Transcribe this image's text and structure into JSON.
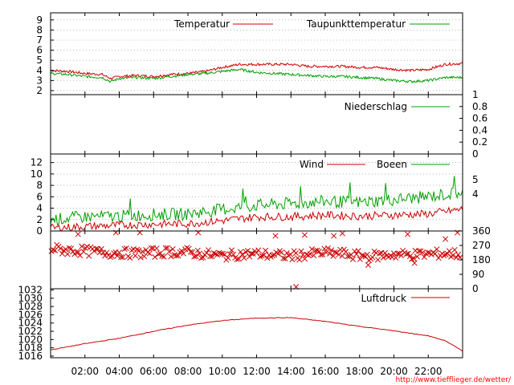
{
  "footer_url": "http://www.tiefflieger.de/wetter/",
  "x_ticks": [
    "02:00",
    "04:00",
    "06:00",
    "08:00",
    "10:00",
    "12:00",
    "14:00",
    "16:00",
    "18:00",
    "20:00",
    "22:00"
  ],
  "colors": {
    "red": "#cc0000",
    "green": "#00a000",
    "frame": "#000000"
  },
  "chart_data": [
    {
      "type": "line",
      "y_ticks": [
        2,
        3,
        4,
        5,
        6,
        7,
        8,
        9
      ],
      "ylim": [
        1.6,
        9.7
      ],
      "series": [
        {
          "name": "Temperatur",
          "color": "#cc0000",
          "x": [
            0,
            1,
            2,
            3,
            3.5,
            4,
            5,
            6,
            7,
            8,
            9,
            10,
            11,
            12,
            13,
            14,
            15,
            16,
            17,
            18,
            19,
            20,
            21,
            22,
            23,
            24
          ],
          "values": [
            4.0,
            3.9,
            3.7,
            3.6,
            3.2,
            3.4,
            3.5,
            3.4,
            3.6,
            3.7,
            3.9,
            4.3,
            4.6,
            4.6,
            4.6,
            4.6,
            4.4,
            4.4,
            4.4,
            4.3,
            4.3,
            4.1,
            4.0,
            4.1,
            4.6,
            4.7
          ]
        },
        {
          "name": "Taupunkttemperatur",
          "color": "#00a000",
          "x": [
            0,
            1,
            2,
            3,
            3.5,
            4,
            5,
            6,
            7,
            8,
            9,
            10,
            11,
            12,
            13,
            14,
            15,
            16,
            17,
            18,
            19,
            20,
            21,
            22,
            23,
            24
          ],
          "values": [
            3.7,
            3.6,
            3.4,
            3.3,
            2.9,
            3.2,
            3.3,
            3.2,
            3.4,
            3.6,
            3.7,
            3.9,
            4.1,
            3.8,
            3.7,
            3.6,
            3.5,
            3.4,
            3.4,
            3.3,
            3.2,
            3.0,
            2.9,
            3.0,
            3.3,
            3.3
          ]
        }
      ]
    },
    {
      "type": "line",
      "y_ticks": [
        "0",
        "0.2",
        "0.4",
        "0.6",
        "0.8",
        "1"
      ],
      "ylim": [
        0,
        1
      ],
      "series": [
        {
          "name": "Niederschlag",
          "color": "#00a000",
          "x": [
            0,
            24
          ],
          "values": [
            0,
            0
          ]
        }
      ]
    },
    {
      "type": "line",
      "y_ticks": [
        0,
        2,
        4,
        6,
        8,
        10,
        12
      ],
      "y_ticks_right": [
        "4",
        "5"
      ],
      "ylim": [
        0,
        13.5
      ],
      "series": [
        {
          "name": "Wind",
          "color": "#cc0000",
          "x": [
            0,
            2,
            4,
            6,
            8,
            10,
            12,
            14,
            16,
            18,
            20,
            22,
            24
          ],
          "values": [
            0.5,
            0.8,
            1.0,
            1.2,
            1.3,
            1.8,
            2.5,
            2.5,
            2.8,
            2.6,
            2.8,
            3.0,
            3.8
          ]
        },
        {
          "name": "Boeen",
          "color": "#00a000",
          "x": [
            0,
            2,
            4,
            6,
            8,
            10,
            12,
            14,
            16,
            18,
            20,
            22,
            24
          ],
          "values": [
            2.0,
            2.5,
            2.6,
            2.9,
            3.0,
            3.8,
            4.5,
            4.8,
            5.2,
            5.0,
            5.5,
            6.0,
            6.8
          ]
        }
      ]
    },
    {
      "type": "scatter",
      "y_ticks": [
        0,
        90,
        180,
        270,
        360
      ],
      "ylim": [
        0,
        360
      ],
      "marker": "x",
      "color": "#cc0000",
      "center_values": [
        250,
        240,
        235,
        225,
        225,
        220,
        225,
        230,
        228,
        215,
        205,
        215,
        218,
        210,
        205,
        215,
        225,
        218,
        205,
        205,
        215,
        212,
        215,
        220,
        215
      ],
      "outliers": [
        [
          1.6,
          340
        ],
        [
          3.8,
          350
        ],
        [
          5.2,
          350
        ],
        [
          8.6,
          350
        ],
        [
          13.1,
          330
        ],
        [
          14.3,
          12
        ],
        [
          14.8,
          335
        ],
        [
          16.5,
          330
        ],
        [
          17.0,
          345
        ],
        [
          18.5,
          148
        ],
        [
          20.8,
          340
        ],
        [
          21.2,
          160
        ],
        [
          23.0,
          310
        ],
        [
          23.7,
          350
        ]
      ]
    },
    {
      "type": "line",
      "y_ticks": [
        1016,
        1018,
        1020,
        1022,
        1024,
        1026,
        1028,
        1030,
        1032
      ],
      "ylim": [
        1015.6,
        1032.3
      ],
      "series": [
        {
          "name": "Luftdruck",
          "color": "#cc0000",
          "x": [
            0,
            2,
            4,
            6,
            8,
            10,
            12,
            14,
            16,
            18,
            20,
            22,
            23,
            24
          ],
          "values": [
            1017.5,
            1019.0,
            1020.3,
            1022.0,
            1023.5,
            1024.6,
            1025.2,
            1025.3,
            1024.4,
            1023.2,
            1022.1,
            1020.9,
            1019.7,
            1017.2
          ]
        }
      ]
    }
  ]
}
